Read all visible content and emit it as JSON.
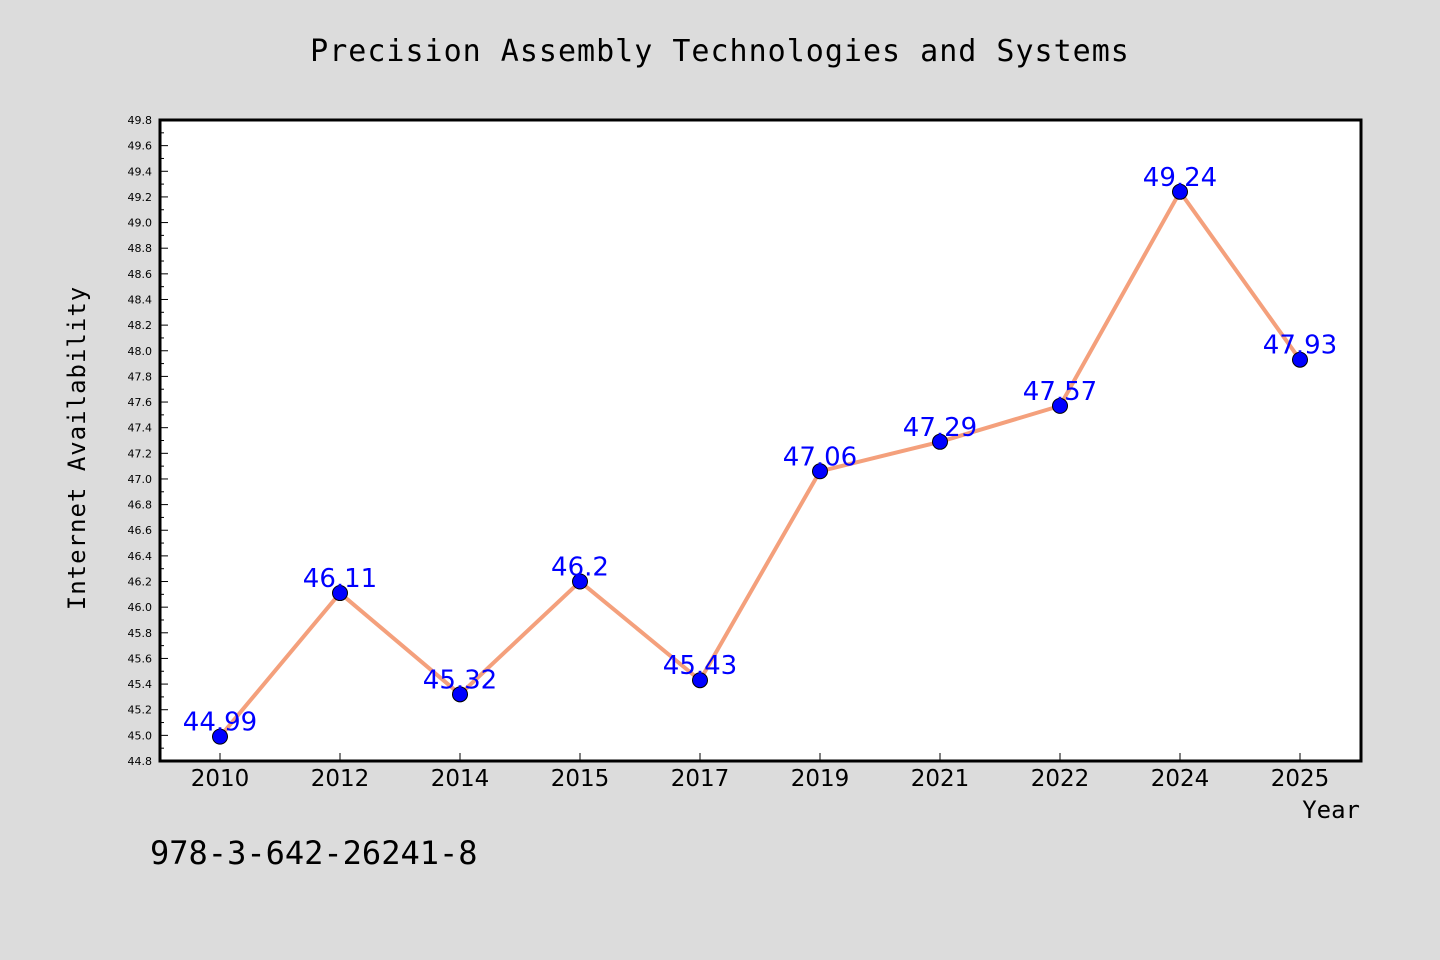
{
  "chart_data": {
    "type": "line",
    "title": "Precision Assembly Technologies and Systems",
    "xlabel": "Year",
    "ylabel": "Internet Availability",
    "categories": [
      "2010",
      "2012",
      "2014",
      "2015",
      "2017",
      "2019",
      "2021",
      "2022",
      "2024",
      "2025"
    ],
    "series": [
      {
        "values": [
          44.99,
          46.11,
          45.32,
          46.2,
          45.43,
          47.06,
          47.29,
          47.57,
          49.24,
          47.93
        ],
        "labels": [
          "44.99",
          "46.11",
          "45.32",
          "46.2",
          "45.43",
          "47.06",
          "47.29",
          "47.57",
          "49.24",
          "47.93"
        ],
        "line_color": "#f4a07c",
        "marker_color": "#0000ff"
      }
    ],
    "ylim": [
      44.8,
      49.8
    ],
    "yticks": [
      "44.8",
      "45.0",
      "45.2",
      "45.4",
      "45.6",
      "45.8",
      "46.0",
      "46.2",
      "46.4",
      "46.6",
      "46.8",
      "47.0",
      "47.2",
      "47.4",
      "47.6",
      "47.8",
      "48.0",
      "48.2",
      "48.4",
      "48.6",
      "48.8",
      "49.0",
      "49.2",
      "49.4",
      "49.6",
      "49.8"
    ],
    "grid": false,
    "legend": "none"
  },
  "footer": {
    "isbn": "978-3-642-26241-8"
  },
  "colors": {
    "background": "#dcdcdc",
    "plot_background": "#ffffff"
  }
}
